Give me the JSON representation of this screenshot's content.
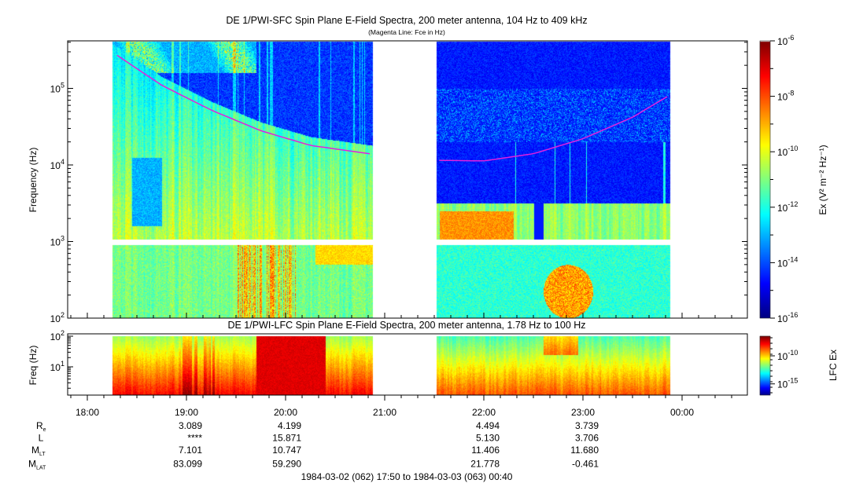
{
  "chart_data": [
    {
      "type": "heatmap",
      "title": "DE 1/PWI-SFC  Spin Plane E-Field Spectra, 200 meter antenna, 104 Hz to 409 kHz",
      "subtitle": "(Magenta Line: Fce in Hz)",
      "ylabel": "Frequency (Hz)",
      "yscale": "log",
      "ylim": [
        100,
        409000
      ],
      "yticks": [
        {
          "base": "10",
          "exp": "2",
          "value": 100
        },
        {
          "base": "10",
          "exp": "3",
          "value": 1000
        },
        {
          "base": "10",
          "exp": "4",
          "value": 10000
        },
        {
          "base": "10",
          "exp": "5",
          "value": 100000
        }
      ],
      "data_segments_hours_after_1800": [
        [
          0.25,
          2.88
        ],
        [
          3.52,
          5.88
        ]
      ],
      "colorbar": {
        "label": "Ex (V² m⁻² Hz⁻¹)",
        "label_parts": {
          "pre": "Ex (V",
          "sup1": "2",
          "mid": " m",
          "sup2": "-2",
          "mid2": " Hz",
          "sup3": "-1",
          "post": ")"
        },
        "range_log10": [
          -16,
          -6
        ],
        "ticks": [
          {
            "base": "10",
            "exp": "-6",
            "value": -6
          },
          {
            "base": "10",
            "exp": "-8",
            "value": -8
          },
          {
            "base": "10",
            "exp": "-10",
            "value": -10
          },
          {
            "base": "10",
            "exp": "-12",
            "value": -12
          },
          {
            "base": "10",
            "exp": "-14",
            "value": -14
          },
          {
            "base": "10",
            "exp": "-16",
            "value": -16
          }
        ]
      },
      "fce_line": {
        "color": "#e020e0",
        "segments": [
          {
            "hours": [
              0.3,
              0.75,
              1.25,
              1.75,
              2.25,
              2.85
            ],
            "hz": [
              270000,
              110000,
              52000,
              28000,
              18000,
              14000
            ]
          },
          {
            "hours": [
              3.55,
              4.0,
              4.5,
              5.0,
              5.5,
              5.85
            ],
            "hz": [
              11500,
              11300,
              14000,
              22000,
              42000,
              78000
            ]
          }
        ]
      }
    },
    {
      "type": "heatmap",
      "title": "DE 1/PWI-LFC  Spin Plane E-Field Spectra, 200 meter antenna, 1.78 Hz to 100 Hz",
      "ylabel": "Freq (Hz)",
      "yscale": "log",
      "ylim": [
        1.78,
        100
      ],
      "yticks": [
        {
          "base": "10",
          "exp": "1",
          "value": 10
        },
        {
          "base": "10",
          "exp": "2",
          "value": 100
        }
      ],
      "colorbar": {
        "label": "LFC Ex",
        "range_log10": [
          -17,
          -6.5
        ],
        "ticks": [
          {
            "base": "10",
            "exp": "-10",
            "value": -10
          },
          {
            "base": "10",
            "exp": "-15",
            "value": -15
          }
        ]
      }
    }
  ],
  "xaxis": {
    "ticks": [
      "18:00",
      "19:00",
      "20:00",
      "21:00",
      "22:00",
      "23:00",
      "00:00"
    ],
    "range_label": "1984-03-02 (062) 17:50 to 1984-03-03 (063) 00:40"
  },
  "ephemeris": {
    "columns": [
      "19:00",
      "20:00",
      "22:00",
      "23:00"
    ],
    "rows": [
      {
        "label": "R",
        "sub": "e",
        "values": [
          "3.089",
          "4.199",
          "4.494",
          "3.739"
        ]
      },
      {
        "label": "L",
        "sub": "",
        "values": [
          "****",
          "15.871",
          "5.130",
          "3.706"
        ]
      },
      {
        "label": "M",
        "sub": "LT",
        "values": [
          "7.101",
          "10.747",
          "11.406",
          "11.680"
        ]
      },
      {
        "label": "M",
        "sub": "LAT",
        "values": [
          "83.099",
          "59.290",
          "21.778",
          "-0.461"
        ]
      }
    ]
  }
}
